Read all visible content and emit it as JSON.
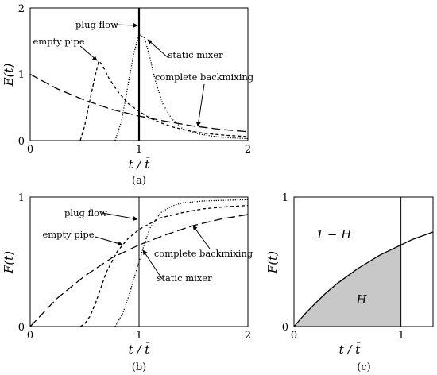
{
  "chart_data": [
    {
      "id": "a",
      "type": "line",
      "panel_label": "(a)",
      "xlabel": "t / t̄",
      "ylabel": "E(t)",
      "xlim": [
        0,
        2
      ],
      "ylim": [
        0,
        2
      ],
      "xticks": [
        "0",
        "1",
        "2"
      ],
      "yticks": [
        "0",
        "1",
        "2"
      ],
      "grid": false,
      "series": [
        {
          "name": "complete backmixing",
          "style": "long-dash",
          "x": [
            0,
            0.25,
            0.5,
            0.75,
            1.0,
            1.25,
            1.5,
            1.75,
            2.0
          ],
          "y": [
            1.0,
            0.78,
            0.61,
            0.47,
            0.37,
            0.29,
            0.22,
            0.17,
            0.135
          ]
        },
        {
          "name": "empty pipe",
          "style": "short-dash",
          "x": [
            0.46,
            0.5,
            0.55,
            0.6,
            0.63,
            0.66,
            0.72,
            0.8,
            0.9,
            1.0,
            1.1,
            1.2,
            1.3,
            1.45,
            1.6,
            1.8,
            2.0
          ],
          "y": [
            0,
            0.22,
            0.62,
            1.0,
            1.2,
            1.15,
            0.95,
            0.75,
            0.56,
            0.44,
            0.34,
            0.27,
            0.21,
            0.15,
            0.11,
            0.08,
            0.06
          ]
        },
        {
          "name": "plug flow",
          "style": "solid-vertical",
          "x": [
            1.0,
            1.0
          ],
          "y": [
            0,
            2.0
          ]
        },
        {
          "name": "static mixer",
          "style": "dotted",
          "x": [
            0.78,
            0.84,
            0.9,
            0.95,
            1.0,
            1.05,
            1.1,
            1.15,
            1.22,
            1.3,
            1.4,
            1.55,
            1.7,
            1.85,
            2.0
          ],
          "y": [
            0,
            0.3,
            0.85,
            1.3,
            1.6,
            1.55,
            1.25,
            0.9,
            0.55,
            0.33,
            0.18,
            0.1,
            0.06,
            0.04,
            0.03
          ]
        }
      ],
      "annotations": [
        "plug flow",
        "empty pipe",
        "static mixer",
        "complete backmixing"
      ]
    },
    {
      "id": "b",
      "type": "line",
      "panel_label": "(b)",
      "xlabel": "t / t̄",
      "ylabel": "F(t)",
      "xlim": [
        0,
        2
      ],
      "ylim": [
        0,
        1
      ],
      "xticks": [
        "0",
        "1",
        "2"
      ],
      "yticks": [
        "0",
        "1"
      ],
      "grid": false,
      "series": [
        {
          "name": "complete backmixing",
          "style": "long-dash",
          "x": [
            0,
            0.25,
            0.5,
            0.75,
            1.0,
            1.25,
            1.5,
            1.75,
            2.0
          ],
          "y": [
            0,
            0.22,
            0.39,
            0.53,
            0.63,
            0.71,
            0.78,
            0.83,
            0.865
          ]
        },
        {
          "name": "empty pipe",
          "style": "short-dash",
          "x": [
            0.46,
            0.5,
            0.55,
            0.6,
            0.65,
            0.7,
            0.8,
            0.9,
            1.0,
            1.2,
            1.4,
            1.6,
            1.8,
            2.0
          ],
          "y": [
            0,
            0.02,
            0.08,
            0.18,
            0.3,
            0.42,
            0.58,
            0.68,
            0.75,
            0.84,
            0.88,
            0.91,
            0.925,
            0.935
          ]
        },
        {
          "name": "plug flow",
          "style": "solid-vertical",
          "x": [
            1.0,
            1.0
          ],
          "y": [
            0,
            1.0
          ]
        },
        {
          "name": "static mixer",
          "style": "dotted",
          "x": [
            0.78,
            0.85,
            0.9,
            0.95,
            1.0,
            1.05,
            1.1,
            1.2,
            1.3,
            1.4,
            1.6,
            1.8,
            2.0
          ],
          "y": [
            0,
            0.1,
            0.22,
            0.36,
            0.5,
            0.64,
            0.76,
            0.88,
            0.93,
            0.955,
            0.97,
            0.975,
            0.98
          ]
        }
      ],
      "annotations": [
        "plug flow",
        "empty pipe",
        "complete backmixing",
        "static mixer"
      ]
    },
    {
      "id": "c",
      "type": "area",
      "panel_label": "(c)",
      "xlabel": "t / t̄",
      "ylabel": "F(t)",
      "xlim": [
        0,
        1.3
      ],
      "ylim": [
        0,
        1
      ],
      "xticks": [
        "0",
        "1"
      ],
      "yticks": [
        "0",
        "1"
      ],
      "grid": false,
      "series": [
        {
          "name": "F(t)",
          "style": "solid",
          "x": [
            0,
            0.1,
            0.2,
            0.3,
            0.4,
            0.5,
            0.6,
            0.7,
            0.8,
            0.9,
            1.0,
            1.1,
            1.2,
            1.3
          ],
          "y": [
            0,
            0.095,
            0.18,
            0.26,
            0.33,
            0.39,
            0.45,
            0.5,
            0.55,
            0.59,
            0.63,
            0.67,
            0.7,
            0.73
          ]
        }
      ],
      "shaded_region": {
        "x_from": 0,
        "x_to": 1.0,
        "color": "#c8c8c8"
      },
      "annotations": [
        "1 − H",
        "H"
      ]
    }
  ]
}
